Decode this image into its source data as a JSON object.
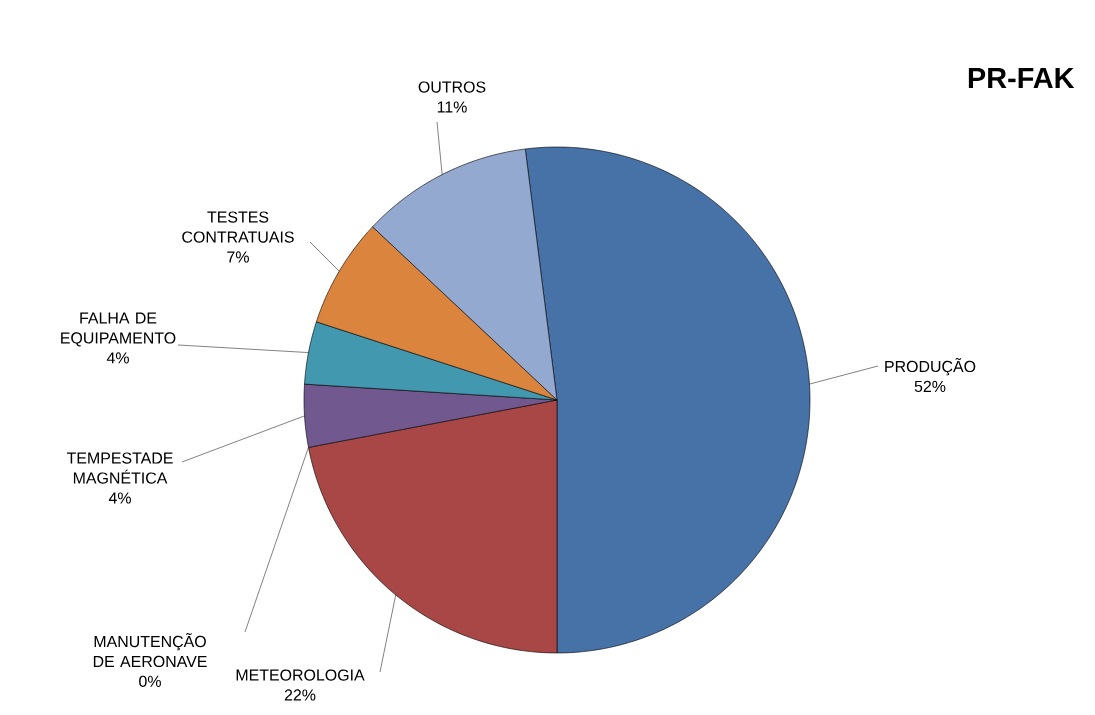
{
  "chart_data": {
    "type": "pie",
    "title": "PR-FAK",
    "categories": [
      "PRODUÇÃO",
      "METEOROLOGIA",
      "MANUTENÇÃO DE AERONAVE",
      "TEMPESTADE MAGNÉTICA",
      "FALHA DE EQUIPAMENTO",
      "TESTES CONTRATUAIS",
      "OUTROS"
    ],
    "values": [
      52,
      22,
      0,
      4,
      4,
      7,
      11
    ],
    "value_labels": [
      "52%",
      "22%",
      "0%",
      "4%",
      "4%",
      "7%",
      "11%"
    ],
    "colors": [
      "#4672a8",
      "#a84745",
      "#89a54e",
      "#71588f",
      "#4198af",
      "#db843d",
      "#93a9cf"
    ]
  }
}
